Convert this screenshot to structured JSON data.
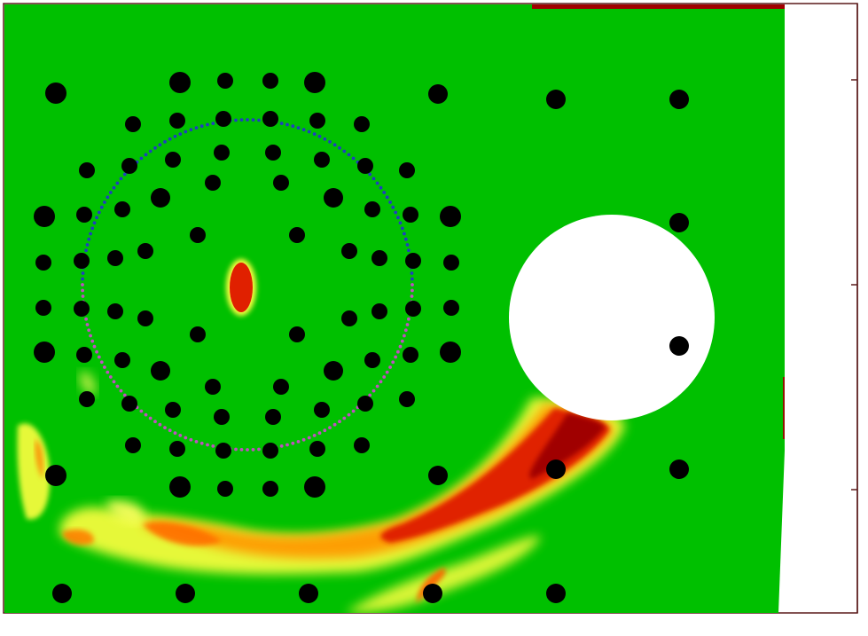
{
  "field": {
    "background_color": "#00c000",
    "hot_colors": [
      "#ffff00",
      "#ff8000",
      "#e02000",
      "#a00000"
    ],
    "obstacle_color": "#ffffff",
    "frame_color": "#5a1a1a"
  },
  "probe_circle": {
    "upper_arc_color": "#1f3fbf",
    "lower_arc_color": "#c050c0",
    "marker_style": "dotted"
  },
  "markers": {
    "color": "#000000",
    "count": 120
  },
  "right_axis": {
    "tick_count": 3,
    "tick_labels": []
  }
}
